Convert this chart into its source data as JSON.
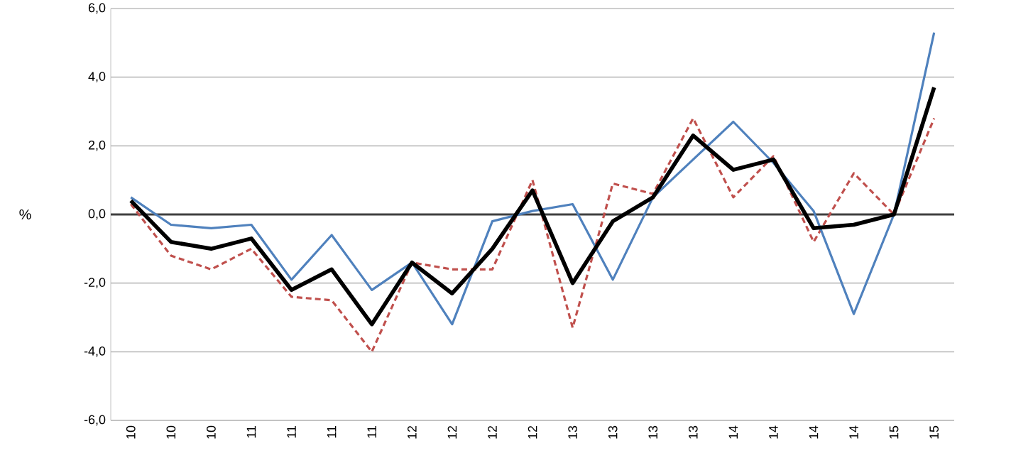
{
  "chart_data": {
    "type": "line",
    "ylabel": "%",
    "categories": [
      "10",
      "10",
      "10",
      "11",
      "11",
      "11",
      "11",
      "12",
      "12",
      "12",
      "12",
      "13",
      "13",
      "13",
      "13",
      "14",
      "14",
      "14",
      "14",
      "15",
      "15"
    ],
    "series": [
      {
        "color": "#c0504d",
        "line_style": "dashed",
        "values": [
          0.3,
          -1.2,
          -1.6,
          -1.0,
          -2.4,
          -2.5,
          -4.0,
          -1.4,
          -1.6,
          -1.6,
          1.0,
          -3.3,
          0.9,
          0.6,
          2.8,
          0.5,
          1.7,
          -0.8,
          1.2,
          0.0,
          2.8
        ]
      },
      {
        "color": "#4f81bd",
        "line_style": "solid",
        "values": [
          0.5,
          -0.3,
          -0.4,
          -0.3,
          -1.9,
          -0.6,
          -2.2,
          -1.4,
          -3.2,
          -0.2,
          0.1,
          0.3,
          -1.9,
          0.5,
          1.6,
          2.7,
          1.5,
          0.1,
          -2.9,
          0.0,
          5.3
        ]
      },
      {
        "color": "#000000",
        "line_style": "solid",
        "values": [
          0.4,
          -0.8,
          -1.0,
          -0.7,
          -2.2,
          -1.6,
          -3.2,
          -1.4,
          -2.3,
          -1.0,
          0.7,
          -2.0,
          -0.2,
          0.5,
          2.3,
          1.3,
          1.6,
          -0.4,
          -0.3,
          0.0,
          3.7
        ]
      }
    ],
    "ylim": [
      -6,
      6
    ],
    "yticks": [
      {
        "value": -6,
        "label": "-6,0"
      },
      {
        "value": -4,
        "label": "-4,0"
      },
      {
        "value": -2,
        "label": "-2,0"
      },
      {
        "value": 0,
        "label": "0,0"
      },
      {
        "value": 2,
        "label": "2,0"
      },
      {
        "value": 4,
        "label": "4,0"
      },
      {
        "value": 6,
        "label": "6,0"
      }
    ],
    "grid": "y",
    "ref_lines": [
      {
        "axis": "y",
        "value": 0,
        "color": "#404040"
      }
    ]
  }
}
